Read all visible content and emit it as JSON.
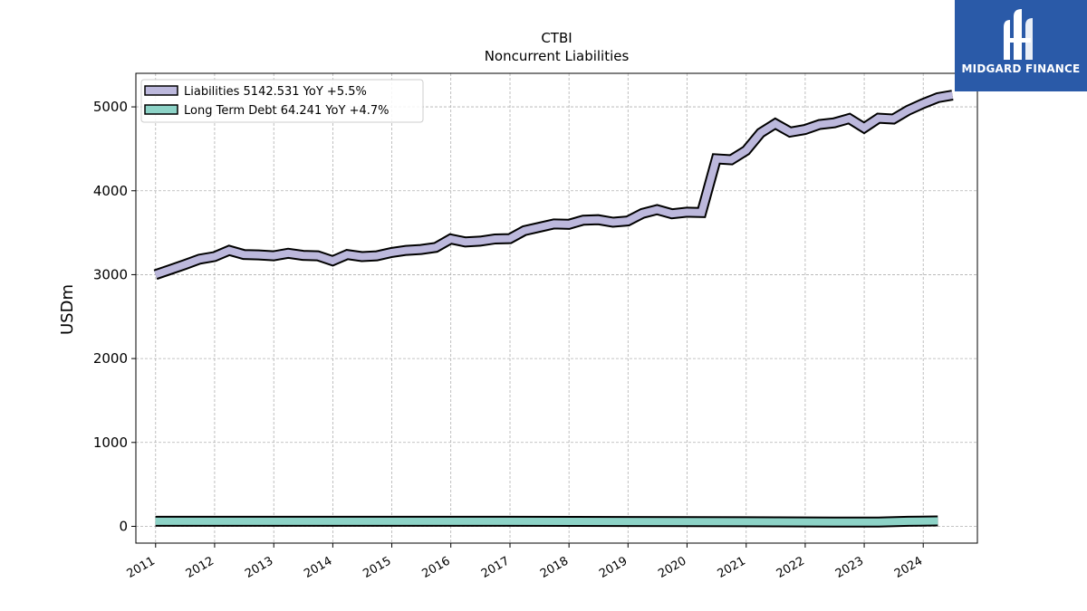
{
  "chart_data": {
    "type": "area",
    "title": "CTBI",
    "subtitle": "Noncurrent  Liabilities",
    "ylabel": "USDm",
    "xlabel": "",
    "ylim": [
      -200,
      5400
    ],
    "xlim": [
      "2010-09-01",
      "2024-12-01"
    ],
    "grid": true,
    "legend_position": "top-left",
    "x_tick_labels": [
      "2011",
      "2012",
      "2013",
      "2014",
      "2015",
      "2016",
      "2017",
      "2018",
      "2019",
      "2020",
      "2021",
      "2022",
      "2023",
      "2024"
    ],
    "y_tick_labels": [
      "0",
      "1000",
      "2000",
      "3000",
      "4000",
      "5000"
    ],
    "series": [
      {
        "name": "Liabilities",
        "legend_label": "Liabilities  5142.531 YoY +5.5%",
        "color": "#bcb8dc",
        "x": [
          "2010-12-31",
          "2011-03-31",
          "2011-06-30",
          "2011-09-30",
          "2011-12-31",
          "2012-03-31",
          "2012-06-30",
          "2012-09-30",
          "2012-12-31",
          "2013-03-31",
          "2013-06-30",
          "2013-09-30",
          "2013-12-31",
          "2014-03-31",
          "2014-06-30",
          "2014-09-30",
          "2014-12-31",
          "2015-03-31",
          "2015-06-30",
          "2015-09-30",
          "2015-12-31",
          "2016-03-31",
          "2016-06-30",
          "2016-09-30",
          "2016-12-31",
          "2017-03-31",
          "2017-06-30",
          "2017-09-30",
          "2017-12-31",
          "2018-03-31",
          "2018-06-30",
          "2018-09-30",
          "2018-12-31",
          "2019-03-31",
          "2019-06-30",
          "2019-09-30",
          "2019-12-31",
          "2020-03-31",
          "2020-06-30",
          "2020-09-30",
          "2020-12-31",
          "2021-03-31",
          "2021-06-30",
          "2021-09-30",
          "2021-12-31",
          "2022-03-31",
          "2022-06-30",
          "2022-09-30",
          "2022-12-31",
          "2023-03-31",
          "2023-06-30",
          "2023-09-30",
          "2023-12-31",
          "2024-03-31",
          "2024-06-30"
        ],
        "values": [
          3000,
          3060,
          3120,
          3185,
          3215,
          3290,
          3240,
          3235,
          3225,
          3255,
          3230,
          3225,
          3165,
          3240,
          3215,
          3225,
          3265,
          3290,
          3300,
          3325,
          3425,
          3390,
          3400,
          3425,
          3430,
          3525,
          3565,
          3605,
          3600,
          3650,
          3655,
          3625,
          3640,
          3730,
          3775,
          3725,
          3745,
          3740,
          4380,
          4370,
          4480,
          4690,
          4800,
          4700,
          4730,
          4790,
          4810,
          4860,
          4750,
          4865,
          4855,
          4960,
          5040,
          5110,
          5140
        ]
      },
      {
        "name": "Long Term Debt",
        "legend_label": "Long Term Debt  64.241 YoY +4.7%",
        "color": "#8dd3c7",
        "x": [
          "2010-12-31",
          "2012-12-31",
          "2014-12-31",
          "2016-12-31",
          "2018-12-31",
          "2020-12-31",
          "2022-06-30",
          "2023-03-31",
          "2023-09-30",
          "2024-03-31"
        ],
        "values": [
          60,
          60,
          60,
          60,
          58,
          55,
          50,
          50,
          60,
          64
        ]
      }
    ]
  },
  "logo": {
    "text": "MIDGARD FINANCE",
    "color": "#2a5aa8"
  }
}
